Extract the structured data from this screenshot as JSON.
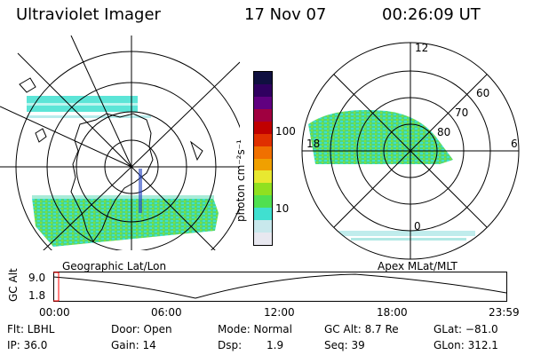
{
  "header": {
    "instrument": "Ultraviolet Imager",
    "date": "17 Nov 07",
    "time": "00:26:09 UT"
  },
  "colorbar": {
    "ticks": [
      "100",
      "10"
    ],
    "unit_label": "photon cm⁻²s⁻¹",
    "colors": [
      "#e8e8f0",
      "#c8e8ec",
      "#40e0d0",
      "#50e050",
      "#90e020",
      "#e8e830",
      "#f0a000",
      "#f07000",
      "#e03000",
      "#c00000",
      "#a00040",
      "#600080",
      "#300060",
      "#101040"
    ]
  },
  "left_map": {
    "caption": "Geographic Lat/Lon"
  },
  "right_map": {
    "caption": "Apex MLat/MLT",
    "mlt_labels": [
      "12",
      "18",
      "6",
      "0"
    ],
    "lat_labels": [
      "60",
      "70",
      "80"
    ]
  },
  "altitude_plot": {
    "ylabel": "GC Alt",
    "yticks": [
      "9.0",
      "1.8"
    ],
    "xticks": [
      "00:00",
      "06:00",
      "12:00",
      "18:00",
      "23:59"
    ]
  },
  "status": {
    "filter": "Flt: LBHL",
    "ip": "IP: 36.0",
    "door": "Door: Open",
    "gain": "Gain: 14",
    "mode": "Mode: Normal",
    "dsp_label": "Dsp:",
    "dsp_value": "1.9",
    "gc_alt": "GC Alt: 8.7 Re",
    "seq": "Seq: 39",
    "glat": "GLat: −81.0",
    "glon": "GLon: 312.1"
  }
}
